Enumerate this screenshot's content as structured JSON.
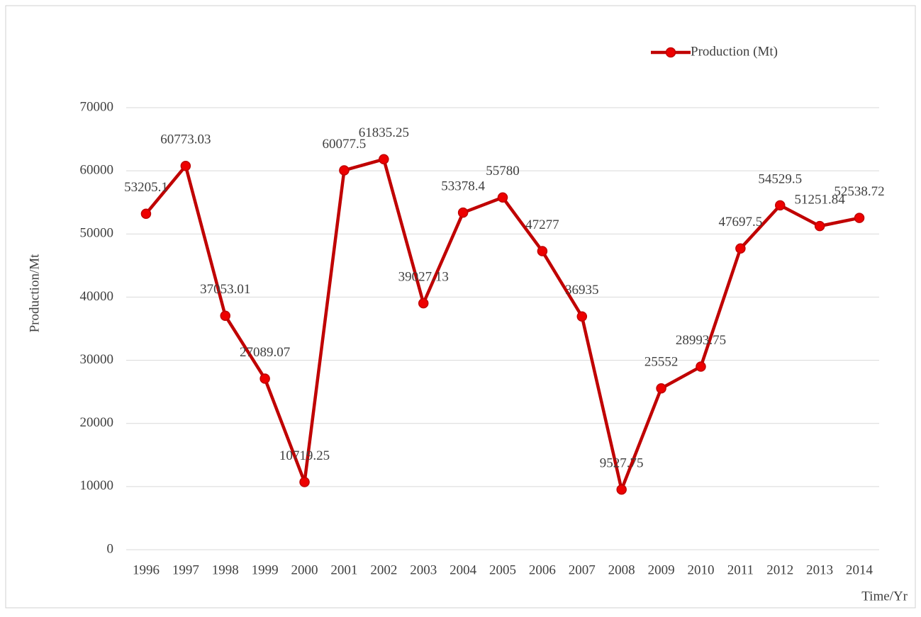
{
  "chart_data": {
    "type": "line",
    "x_label": "Time/Yr",
    "y_label": "Production/Mt",
    "categories": [
      "1996",
      "1997",
      "1998",
      "1999",
      "2000",
      "2001",
      "2002",
      "2003",
      "2004",
      "2005",
      "2006",
      "2007",
      "2008",
      "2009",
      "2010",
      "2011",
      "2012",
      "2013",
      "2014"
    ],
    "series": [
      {
        "name": "Production (Mt)",
        "color": "#c00000",
        "values": [
          53205.1,
          60773.03,
          37053.01,
          27089.07,
          10719.25,
          60077.5,
          61835.25,
          39027.13,
          53378.4,
          55780,
          47277,
          36935,
          9527.75,
          25552,
          28993.75,
          47697.5,
          54529.5,
          51251.84,
          52538.72
        ]
      }
    ],
    "ylim": [
      0,
      70000
    ],
    "yticks": [
      0,
      10000,
      20000,
      30000,
      40000,
      50000,
      60000,
      70000
    ],
    "grid": true,
    "legend": "top-right",
    "data_labels": true
  }
}
